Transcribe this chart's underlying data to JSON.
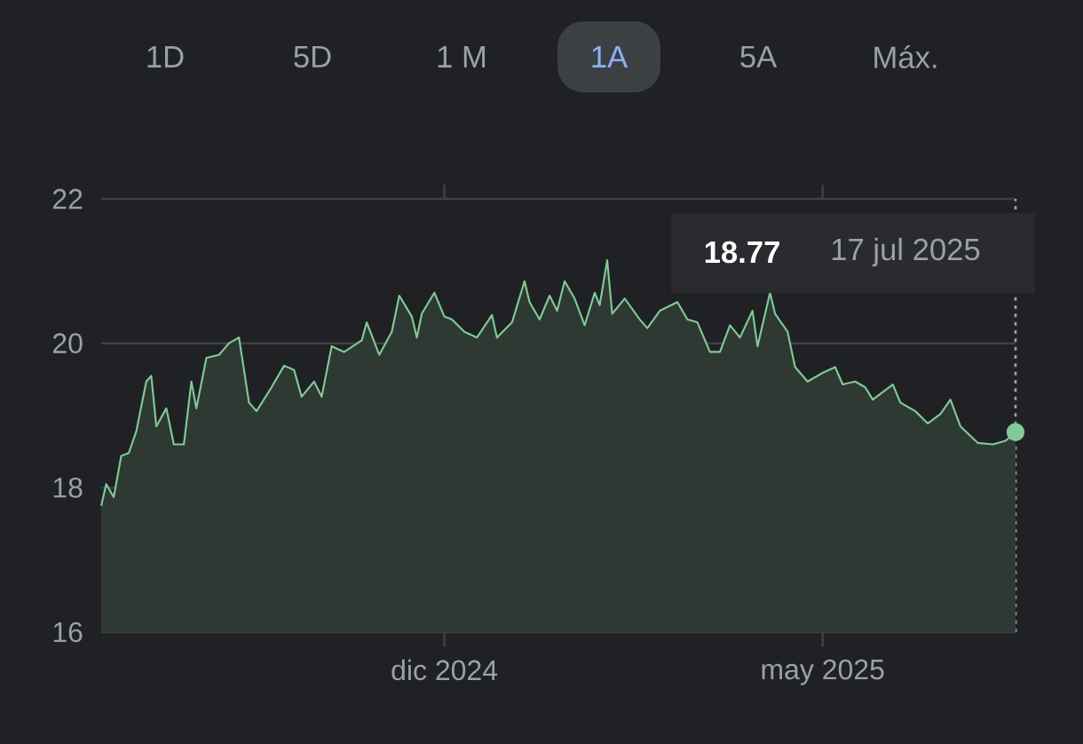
{
  "chart_data": {
    "type": "area",
    "series": [
      {
        "color": "#81c995",
        "x": [
          "2024-07-17",
          "2024-07-19",
          "2024-07-22",
          "2024-07-25",
          "2024-07-28",
          "2024-07-31",
          "2024-08-04",
          "2024-08-06",
          "2024-08-08",
          "2024-08-12",
          "2024-08-15",
          "2024-08-19",
          "2024-08-22",
          "2024-08-24",
          "2024-08-28",
          "2024-09-02",
          "2024-09-06",
          "2024-09-10",
          "2024-09-14",
          "2024-09-17",
          "2024-09-23",
          "2024-09-28",
          "2024-10-02",
          "2024-10-05",
          "2024-10-10",
          "2024-10-13",
          "2024-10-17",
          "2024-10-22",
          "2024-10-29",
          "2024-10-31",
          "2024-11-05",
          "2024-11-10",
          "2024-11-13",
          "2024-11-18",
          "2024-11-20",
          "2024-11-22",
          "2024-11-27",
          "2024-12-01",
          "2024-12-04",
          "2024-12-09",
          "2024-12-14",
          "2024-12-20",
          "2024-12-22",
          "2024-12-28",
          "2025-01-02",
          "2025-01-04",
          "2025-01-08",
          "2025-01-12",
          "2025-01-15",
          "2025-01-18",
          "2025-01-22",
          "2025-01-26",
          "2025-01-30",
          "2025-02-01",
          "2025-02-04",
          "2025-02-06",
          "2025-02-11",
          "2025-02-17",
          "2025-02-20",
          "2025-02-25",
          "2025-03-04",
          "2025-03-08",
          "2025-03-12",
          "2025-03-17",
          "2025-03-21",
          "2025-03-25",
          "2025-03-29",
          "2025-04-03",
          "2025-04-05",
          "2025-04-10",
          "2025-04-12",
          "2025-04-17",
          "2025-04-20",
          "2025-04-25",
          "2025-05-01",
          "2025-05-06",
          "2025-05-09",
          "2025-05-14",
          "2025-05-18",
          "2025-05-21",
          "2025-05-29",
          "2025-06-01",
          "2025-06-07",
          "2025-06-12",
          "2025-06-17",
          "2025-06-21",
          "2025-06-25",
          "2025-07-02",
          "2025-07-08",
          "2025-07-13",
          "2025-07-17"
        ],
        "values": [
          17.75,
          18.05,
          17.87,
          18.44,
          18.48,
          18.78,
          19.47,
          19.55,
          18.85,
          19.1,
          18.6,
          18.6,
          19.47,
          19.1,
          19.8,
          19.84,
          20.0,
          20.08,
          19.18,
          19.06,
          19.39,
          19.69,
          19.63,
          19.26,
          19.47,
          19.26,
          19.96,
          19.88,
          20.04,
          20.29,
          19.84,
          20.16,
          20.66,
          20.37,
          20.08,
          20.41,
          20.7,
          20.37,
          20.33,
          20.16,
          20.08,
          20.39,
          20.08,
          20.29,
          20.86,
          20.57,
          20.33,
          20.66,
          20.45,
          20.86,
          20.62,
          20.25,
          20.7,
          20.53,
          21.15,
          20.41,
          20.62,
          20.33,
          20.21,
          20.45,
          20.57,
          20.33,
          20.29,
          19.88,
          19.88,
          20.25,
          20.08,
          20.45,
          19.96,
          20.7,
          20.41,
          20.16,
          19.67,
          19.47,
          19.59,
          19.67,
          19.43,
          19.47,
          19.39,
          19.22,
          19.43,
          19.18,
          19.06,
          18.89,
          19.02,
          19.22,
          18.85,
          18.62,
          18.6,
          18.65,
          18.77
        ]
      }
    ],
    "xlim": [
      "2024-07-17",
      "2025-07-17"
    ],
    "xticks": [
      {
        "value": "2024-12-01",
        "label": "dic 2024"
      },
      {
        "value": "2025-05-01",
        "label": "may 2025"
      }
    ],
    "ylim": [
      16,
      22
    ],
    "yticks": [
      16,
      18,
      20,
      22
    ],
    "grid": "y",
    "ref_lines": [
      {
        "axis": "x",
        "value": "2025-07-17",
        "line_style": "dotted",
        "color": "#9aa0a6"
      }
    ],
    "annotations": [
      "1D",
      "5D",
      "1 M",
      "1A",
      "5A",
      "Máx.",
      "18.77",
      "17 jul 2025"
    ]
  }
}
